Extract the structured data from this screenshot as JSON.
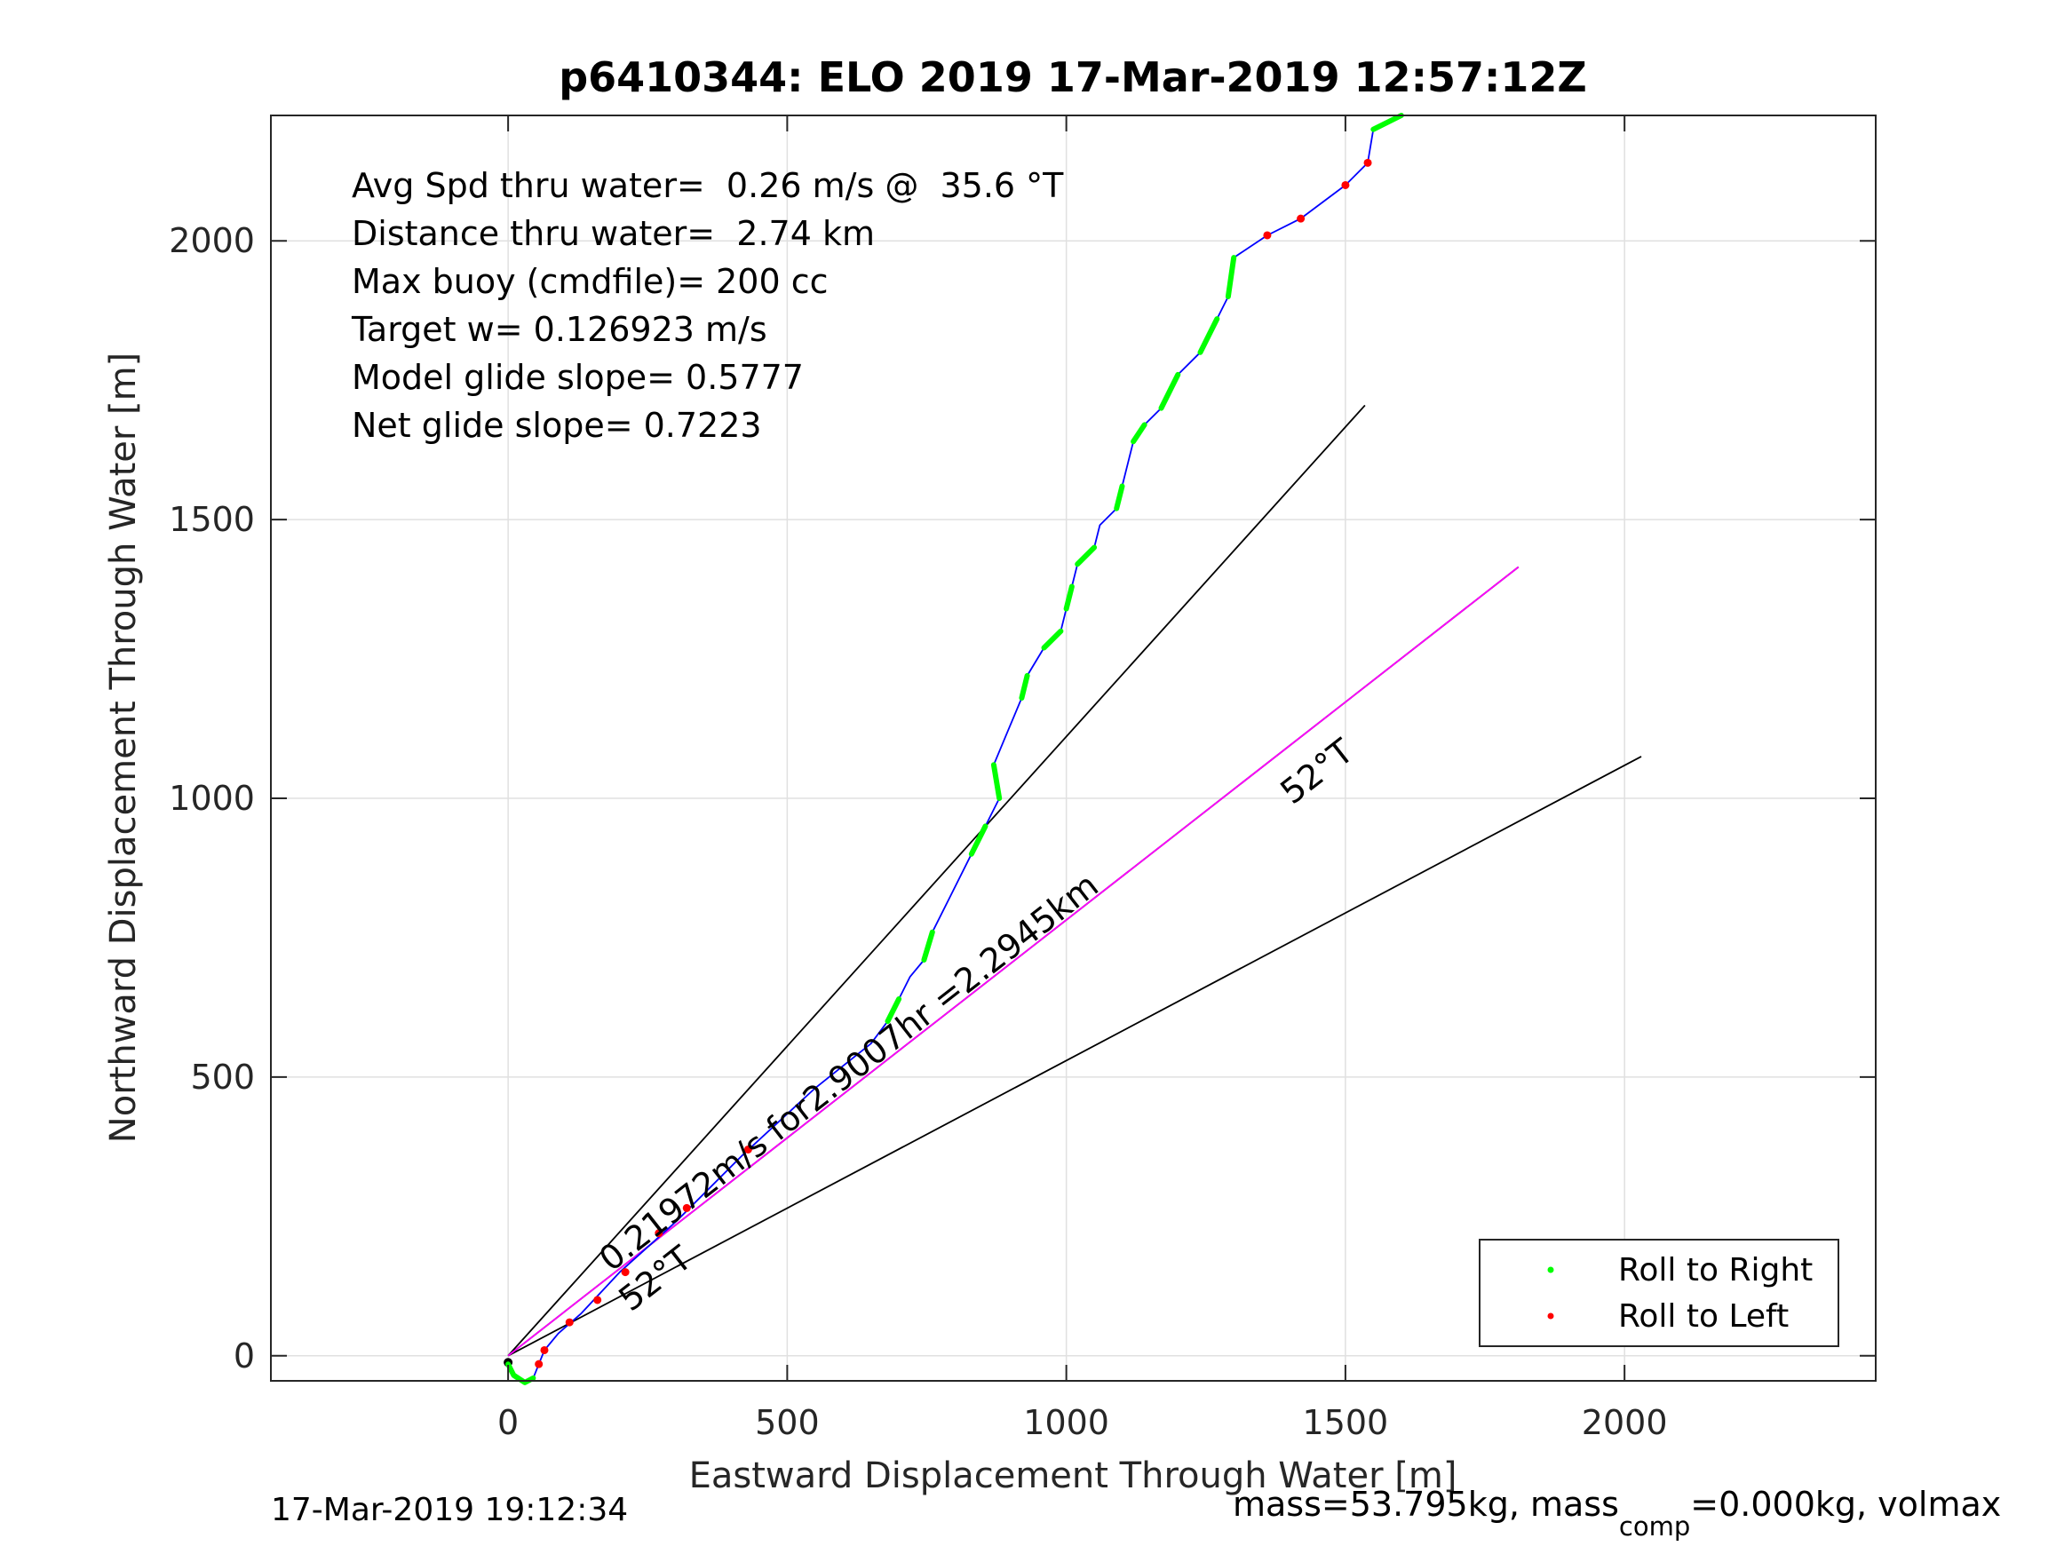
{
  "chart_data": {
    "type": "line",
    "title": "p6410344: ELO 2019 17-Mar-2019 12:57:12Z",
    "xlabel": "Eastward Displacement Through Water [m]",
    "ylabel": "Northward Displacement Through Water [m]",
    "xlim": [
      -425,
      2450
    ],
    "ylim": [
      -45,
      2225
    ],
    "xticks": [
      0,
      500,
      1000,
      1500,
      2000
    ],
    "yticks": [
      0,
      500,
      1000,
      1500,
      2000
    ],
    "xtick_labels": [
      "0",
      "500",
      "1000",
      "1500",
      "2000"
    ],
    "ytick_labels": [
      "0",
      "500",
      "1000",
      "1500",
      "2000"
    ],
    "grid": true,
    "stats": [
      "Avg Spd thru water=  0.26 m/s @  35.6 °T",
      "Distance thru water=  2.74 km",
      "Max buoy (cmdfile)= 200 cc",
      "Target w= 0.126923 m/s",
      "Model glide slope= 0.5777",
      "Net glide slope= 0.7223"
    ],
    "annotations": {
      "speed_text": "0.21972m/s for2.9007hr =2.2945km",
      "heading_near": "52°T",
      "heading_far": "52°T"
    },
    "track": [
      [
        0,
        -15
      ],
      [
        10,
        -35
      ],
      [
        30,
        -48
      ],
      [
        45,
        -40
      ],
      [
        55,
        -15
      ],
      [
        65,
        10
      ],
      [
        90,
        40
      ],
      [
        130,
        75
      ],
      [
        200,
        150
      ],
      [
        300,
        240
      ],
      [
        420,
        360
      ],
      [
        550,
        480
      ],
      [
        650,
        560
      ],
      [
        680,
        600
      ],
      [
        700,
        640
      ],
      [
        720,
        680
      ],
      [
        745,
        710
      ],
      [
        760,
        760
      ],
      [
        790,
        820
      ],
      [
        830,
        900
      ],
      [
        855,
        950
      ],
      [
        880,
        1000
      ],
      [
        870,
        1060
      ],
      [
        895,
        1120
      ],
      [
        920,
        1180
      ],
      [
        930,
        1220
      ],
      [
        960,
        1270
      ],
      [
        990,
        1300
      ],
      [
        1000,
        1340
      ],
      [
        1010,
        1380
      ],
      [
        1020,
        1420
      ],
      [
        1050,
        1450
      ],
      [
        1060,
        1490
      ],
      [
        1090,
        1520
      ],
      [
        1100,
        1560
      ],
      [
        1110,
        1600
      ],
      [
        1120,
        1640
      ],
      [
        1140,
        1670
      ],
      [
        1170,
        1700
      ],
      [
        1200,
        1760
      ],
      [
        1240,
        1800
      ],
      [
        1270,
        1860
      ],
      [
        1290,
        1900
      ],
      [
        1300,
        1970
      ],
      [
        1360,
        2010
      ],
      [
        1420,
        2040
      ],
      [
        1500,
        2100
      ],
      [
        1540,
        2140
      ],
      [
        1550,
        2200
      ],
      [
        1600,
        2225
      ]
    ],
    "glide_cone_lines": [
      {
        "from": [
          0,
          0
        ],
        "to": [
          1535,
          1705
        ]
      },
      {
        "from": [
          0,
          0
        ],
        "to": [
          1810,
          1415
        ]
      },
      {
        "from": [
          0,
          0
        ],
        "to": [
          2030,
          1075
        ]
      }
    ],
    "mean_course_line": {
      "from": [
        0,
        0
      ],
      "to": [
        1810,
        1415
      ]
    },
    "roll_right_segments": [
      [
        [
          0,
          -15
        ],
        [
          10,
          -35
        ],
        [
          30,
          -48
        ],
        [
          45,
          -40
        ]
      ],
      [
        [
          680,
          600
        ],
        [
          700,
          640
        ]
      ],
      [
        [
          745,
          710
        ],
        [
          760,
          760
        ]
      ],
      [
        [
          830,
          900
        ],
        [
          855,
          950
        ]
      ],
      [
        [
          880,
          1000
        ],
        [
          870,
          1060
        ]
      ],
      [
        [
          920,
          1180
        ],
        [
          930,
          1220
        ]
      ],
      [
        [
          960,
          1270
        ],
        [
          990,
          1300
        ]
      ],
      [
        [
          1000,
          1340
        ],
        [
          1010,
          1380
        ]
      ],
      [
        [
          1020,
          1420
        ],
        [
          1050,
          1450
        ]
      ],
      [
        [
          1090,
          1520
        ],
        [
          1100,
          1560
        ]
      ],
      [
        [
          1120,
          1640
        ],
        [
          1140,
          1670
        ]
      ],
      [
        [
          1170,
          1700
        ],
        [
          1200,
          1760
        ]
      ],
      [
        [
          1240,
          1800
        ],
        [
          1270,
          1860
        ]
      ],
      [
        [
          1290,
          1900
        ],
        [
          1300,
          1970
        ]
      ],
      [
        [
          1550,
          2200
        ],
        [
          1600,
          2225
        ]
      ]
    ],
    "roll_left_points": [
      [
        55,
        -15
      ],
      [
        65,
        10
      ],
      [
        110,
        60
      ],
      [
        160,
        100
      ],
      [
        210,
        150
      ],
      [
        270,
        220
      ],
      [
        320,
        265
      ],
      [
        430,
        370
      ],
      [
        1360,
        2010
      ],
      [
        1420,
        2040
      ],
      [
        1500,
        2100
      ],
      [
        1540,
        2140
      ]
    ],
    "legend": {
      "position": "bottom-right",
      "entries": [
        "Roll to Right",
        "Roll to Left"
      ]
    },
    "colors": {
      "track": "#0000ff",
      "roll_right": "#00ff00",
      "roll_left": "#ff0000",
      "mean_course": "#ff00ff",
      "cone": "#000000",
      "grid": "#e0e0e0",
      "axes": "#262626"
    },
    "footer": {
      "left": "17-Mar-2019 19:12:34",
      "right_prefix": "mass=53.795kg, mass",
      "right_sub": "comp",
      "right_suffix": "=0.000kg, volmax"
    }
  }
}
